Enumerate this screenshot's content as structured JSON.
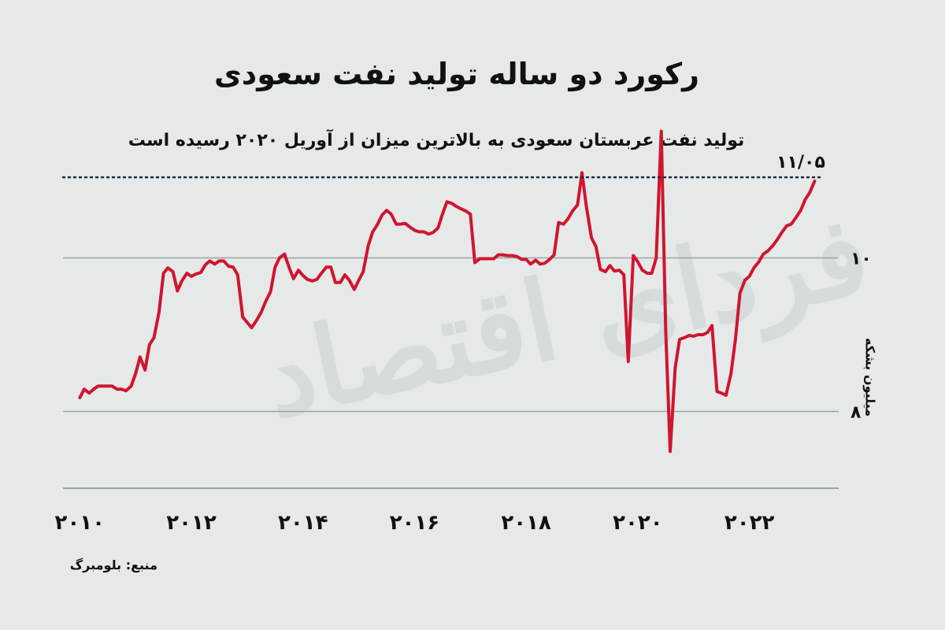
{
  "chart_data": {
    "type": "line",
    "title": "رکورد دو ساله تولید نفت سعودی",
    "subtitle": "تولید نفت عربستان سعودی به بالاترین میزان از آوریل ۲۰۲۰ رسیده است",
    "ylabel": "میلیون بشکه",
    "xlabel": "",
    "source": "منبع: بلومبرگ",
    "xlim": [
      2009.7,
      2023.6
    ],
    "ylim": [
      7.0,
      11.0
    ],
    "x_ticks": [
      2010,
      2012,
      2014,
      2016,
      2018,
      2020,
      2022
    ],
    "x_tick_labels": [
      "۲۰۱۰",
      "۲۰۱۲",
      "۲۰۱۴",
      "۲۰۱۶",
      "۲۰۱۸",
      "۲۰۲۰",
      "۲۰۲۲"
    ],
    "y_ticks": [
      8,
      10
    ],
    "y_tick_labels": [
      "۸",
      "۱۰"
    ],
    "reference_line": {
      "value": 11.05,
      "label": "۱۱/۰۵",
      "style": "dotted"
    },
    "line_color": "#d0152f",
    "reference_color": "#1e2a44",
    "grid_color": "#9aa3a7",
    "watermark": "فردای اقتصاد",
    "series": [
      {
        "x": [
          2010.0,
          2010.08,
          2010.17,
          2010.25,
          2010.33,
          2010.42,
          2010.5,
          2010.58,
          2010.67,
          2010.75,
          2010.83,
          2010.92,
          2011.0,
          2011.08,
          2011.17,
          2011.25,
          2011.33,
          2011.42,
          2011.5,
          2011.58,
          2011.67,
          2011.75,
          2011.83,
          2011.92,
          2012.0,
          2012.08,
          2012.17,
          2012.25,
          2012.33,
          2012.42,
          2012.5,
          2012.58,
          2012.67,
          2012.75,
          2012.83,
          2012.92,
          2013.0,
          2013.08,
          2013.17,
          2013.25,
          2013.33,
          2013.42,
          2013.5,
          2013.58,
          2013.67,
          2013.75,
          2013.83,
          2013.92,
          2014.0,
          2014.08,
          2014.17,
          2014.25,
          2014.33,
          2014.42,
          2014.5,
          2014.58,
          2014.67,
          2014.75,
          2014.83,
          2014.92,
          2015.0,
          2015.08,
          2015.17,
          2015.25,
          2015.33,
          2015.42,
          2015.5,
          2015.58,
          2015.67,
          2015.75,
          2015.83,
          2015.92,
          2016.0,
          2016.08,
          2016.17,
          2016.25,
          2016.33,
          2016.42,
          2016.5,
          2016.58,
          2016.67,
          2016.75,
          2016.83,
          2016.92,
          2017.0,
          2017.08,
          2017.17,
          2017.25,
          2017.33,
          2017.42,
          2017.5,
          2017.58,
          2017.67,
          2017.75,
          2017.83,
          2017.92,
          2018.0,
          2018.08,
          2018.17,
          2018.25,
          2018.33,
          2018.42,
          2018.5,
          2018.58,
          2018.67,
          2018.75,
          2018.83,
          2018.92,
          2019.0,
          2019.08,
          2019.17,
          2019.25,
          2019.33,
          2019.42,
          2019.5,
          2019.58,
          2019.67,
          2019.75,
          2019.83,
          2019.92,
          2020.0,
          2020.08,
          2020.17,
          2020.25,
          2020.33,
          2020.42,
          2020.5,
          2020.58,
          2020.67,
          2020.75,
          2020.83,
          2020.92,
          2021.0,
          2021.08,
          2021.17,
          2021.25,
          2021.33,
          2021.42,
          2021.5,
          2021.58,
          2021.67,
          2021.75,
          2021.83,
          2021.92,
          2022.0,
          2022.08,
          2022.17,
          2022.25,
          2022.33,
          2022.42,
          2022.5,
          2022.58,
          2022.67
        ],
        "values": [
          8.18,
          8.29,
          8.24,
          8.29,
          8.33,
          8.33,
          8.33,
          8.33,
          8.29,
          8.29,
          8.27,
          8.33,
          8.49,
          8.71,
          8.54,
          8.87,
          8.96,
          9.29,
          9.8,
          9.87,
          9.82,
          9.57,
          9.7,
          9.8,
          9.76,
          9.79,
          9.81,
          9.91,
          9.96,
          9.92,
          9.96,
          9.96,
          9.89,
          9.88,
          9.78,
          9.23,
          9.16,
          9.09,
          9.19,
          9.29,
          9.43,
          9.56,
          9.88,
          10.0,
          10.05,
          9.88,
          9.73,
          9.84,
          9.77,
          9.72,
          9.7,
          9.72,
          9.8,
          9.88,
          9.88,
          9.68,
          9.68,
          9.78,
          9.71,
          9.59,
          9.71,
          9.82,
          10.16,
          10.34,
          10.43,
          10.56,
          10.62,
          10.57,
          10.44,
          10.44,
          10.45,
          10.4,
          10.36,
          10.34,
          10.34,
          10.31,
          10.33,
          10.39,
          10.57,
          10.73,
          10.71,
          10.67,
          10.64,
          10.61,
          10.57,
          9.94,
          9.99,
          9.99,
          9.99,
          9.99,
          10.04,
          10.04,
          10.03,
          10.03,
          10.02,
          9.98,
          9.98,
          9.92,
          9.97,
          9.92,
          9.93,
          9.98,
          10.04,
          10.46,
          10.44,
          10.51,
          10.61,
          10.69,
          11.11,
          10.66,
          10.26,
          10.15,
          9.85,
          9.82,
          9.9,
          9.83,
          9.84,
          9.78,
          8.65,
          10.03,
          9.95,
          9.84,
          9.8,
          9.8,
          10.0,
          11.65,
          9.07,
          7.48,
          8.57,
          8.94,
          8.96,
          8.99,
          8.98,
          9.0,
          9.0,
          9.03,
          9.12,
          8.26,
          8.24,
          8.21,
          8.49,
          8.94,
          9.54,
          9.71,
          9.76,
          9.87,
          9.95,
          10.05,
          10.09,
          10.16,
          10.24,
          10.33,
          10.42
        ],
        "extra_points": [
          [
            2022.75,
            10.44
          ],
          [
            2022.83,
            10.52
          ],
          [
            2022.92,
            10.62
          ],
          [
            2023.0,
            10.76
          ],
          [
            2023.08,
            10.85
          ],
          [
            2023.17,
            11.0
          ]
        ]
      }
    ]
  }
}
